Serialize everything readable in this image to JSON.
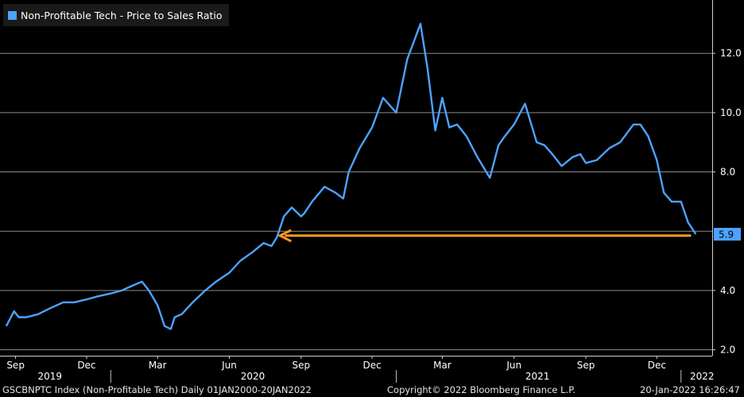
{
  "chart_data": {
    "type": "line",
    "title": "",
    "legend": {
      "label": "Non-Profitable Tech - Price to Sales Ratio",
      "color": "#4da3ff",
      "placement": "top-left"
    },
    "ylim": [
      1.8,
      13.8
    ],
    "yticks": [
      2.0,
      4.0,
      "5.9",
      8.0,
      10.0,
      12.0
    ],
    "ytick_labels": [
      "2.0",
      "4.0",
      "8.0",
      "10.0",
      "12.0"
    ],
    "gridlines": [
      2,
      4,
      6,
      8,
      10,
      12
    ],
    "last_value_label": "5.9",
    "month_labels": [
      "Sep",
      "Dec",
      "Mar",
      "Jun",
      "Sep",
      "Dec",
      "Mar",
      "Jun",
      "Sep",
      "Dec"
    ],
    "year_labels": [
      "2019",
      "2020",
      "2021",
      "2022"
    ],
    "series": [
      {
        "name": "Non-Profitable Tech - Price to Sales Ratio",
        "color": "#4da3ff",
        "x": [
          "2019-08-20",
          "2019-08-30",
          "2019-09-05",
          "2019-09-15",
          "2019-09-30",
          "2019-10-15",
          "2019-11-01",
          "2019-11-15",
          "2019-12-01",
          "2019-12-15",
          "2020-01-01",
          "2020-01-15",
          "2020-02-01",
          "2020-02-10",
          "2020-02-19",
          "2020-03-01",
          "2020-03-10",
          "2020-03-18",
          "2020-03-23",
          "2020-04-01",
          "2020-04-15",
          "2020-05-01",
          "2020-05-15",
          "2020-06-01",
          "2020-06-15",
          "2020-07-01",
          "2020-07-15",
          "2020-07-25",
          "2020-08-01",
          "2020-08-10",
          "2020-08-20",
          "2020-09-01",
          "2020-09-05",
          "2020-09-15",
          "2020-10-01",
          "2020-10-15",
          "2020-10-25",
          "2020-11-01",
          "2020-11-15",
          "2020-12-01",
          "2020-12-15",
          "2021-01-01",
          "2021-01-15",
          "2021-01-25",
          "2021-02-01",
          "2021-02-10",
          "2021-02-20",
          "2021-03-01",
          "2021-03-10",
          "2021-03-20",
          "2021-04-01",
          "2021-04-15",
          "2021-05-01",
          "2021-05-12",
          "2021-05-20",
          "2021-06-01",
          "2021-06-15",
          "2021-06-30",
          "2021-07-10",
          "2021-07-20",
          "2021-08-01",
          "2021-08-15",
          "2021-08-25",
          "2021-09-01",
          "2021-09-15",
          "2021-10-01",
          "2021-10-15",
          "2021-11-01",
          "2021-11-10",
          "2021-11-20",
          "2021-12-01",
          "2021-12-10",
          "2021-12-20",
          "2022-01-01",
          "2022-01-10",
          "2022-01-20"
        ],
        "values": [
          2.8,
          3.3,
          3.1,
          3.1,
          3.2,
          3.4,
          3.6,
          3.6,
          3.7,
          3.8,
          3.9,
          4.0,
          4.2,
          4.3,
          4.0,
          3.5,
          2.8,
          2.7,
          3.1,
          3.2,
          3.6,
          4.0,
          4.3,
          4.6,
          5.0,
          5.3,
          5.6,
          5.5,
          5.8,
          6.5,
          6.8,
          6.5,
          6.6,
          7.0,
          7.5,
          7.3,
          7.1,
          8.0,
          8.8,
          9.5,
          10.5,
          10.0,
          11.8,
          12.5,
          13.0,
          11.5,
          9.4,
          10.5,
          9.5,
          9.6,
          9.2,
          8.5,
          7.8,
          8.9,
          9.2,
          9.6,
          10.3,
          9.0,
          8.9,
          8.6,
          8.2,
          8.5,
          8.6,
          8.3,
          8.4,
          8.8,
          9.0,
          9.6,
          9.6,
          9.2,
          8.4,
          7.3,
          7.0,
          7.0,
          6.3,
          5.9
        ]
      }
    ],
    "annotation": {
      "type": "arrow",
      "color": "#ff9a1f",
      "y": 5.85,
      "x_from": "2022-01-14",
      "x_to": "2020-08-05"
    }
  },
  "footer": {
    "left": "GSCBNPTC Index (Non-Profitable Tech)  Daily 01JAN2000-20JAN2022",
    "center": "Copyright© 2022 Bloomberg Finance L.P.",
    "right": "20-Jan-2022 16:26:47"
  }
}
